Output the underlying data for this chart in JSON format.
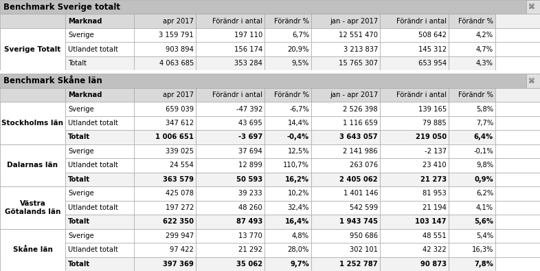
{
  "section1_title": "Benchmark Sverige totalt",
  "section2_title": "Benchmark Skåne län",
  "headers": [
    "Marknad",
    "apr 2017",
    "Förändr i antal",
    "Förändr %",
    "jan - apr 2017",
    "Förändr i antal",
    "Förändr %"
  ],
  "section1_group_label": "Sverige Totalt",
  "section1_rows": [
    {
      "sub": "Sverige",
      "bold": false,
      "vals": [
        "3 159 791",
        "197 110",
        "6,7%",
        "12 551 470",
        "508 642",
        "4,2%"
      ]
    },
    {
      "sub": "Utlandet totalt",
      "bold": false,
      "vals": [
        "903 894",
        "156 174",
        "20,9%",
        "3 213 837",
        "145 312",
        "4,7%"
      ]
    },
    {
      "sub": "Totalt",
      "bold": false,
      "vals": [
        "4 063 685",
        "353 284",
        "9,5%",
        "15 765 307",
        "653 954",
        "4,3%"
      ]
    }
  ],
  "section2_groups": [
    {
      "label": "Stockholms län",
      "rows": [
        {
          "sub": "Sverige",
          "bold": false,
          "vals": [
            "659 039",
            "-47 392",
            "-6,7%",
            "2 526 398",
            "139 165",
            "5,8%"
          ]
        },
        {
          "sub": "Utlandet totalt",
          "bold": false,
          "vals": [
            "347 612",
            "43 695",
            "14,4%",
            "1 116 659",
            "79 885",
            "7,7%"
          ]
        },
        {
          "sub": "Totalt",
          "bold": true,
          "vals": [
            "1 006 651",
            "-3 697",
            "-0,4%",
            "3 643 057",
            "219 050",
            "6,4%"
          ]
        }
      ]
    },
    {
      "label": "Dalarnas län",
      "rows": [
        {
          "sub": "Sverige",
          "bold": false,
          "vals": [
            "339 025",
            "37 694",
            "12,5%",
            "2 141 986",
            "-2 137",
            "-0,1%"
          ]
        },
        {
          "sub": "Utlandet totalt",
          "bold": false,
          "vals": [
            "24 554",
            "12 899",
            "110,7%",
            "263 076",
            "23 410",
            "9,8%"
          ]
        },
        {
          "sub": "Totalt",
          "bold": true,
          "vals": [
            "363 579",
            "50 593",
            "16,2%",
            "2 405 062",
            "21 273",
            "0,9%"
          ]
        }
      ]
    },
    {
      "label": "Västra\nGötalands län",
      "rows": [
        {
          "sub": "Sverige",
          "bold": false,
          "vals": [
            "425 078",
            "39 233",
            "10,2%",
            "1 401 146",
            "81 953",
            "6,2%"
          ]
        },
        {
          "sub": "Utlandet totalt",
          "bold": false,
          "vals": [
            "197 272",
            "48 260",
            "32,4%",
            "542 599",
            "21 194",
            "4,1%"
          ]
        },
        {
          "sub": "Totalt",
          "bold": true,
          "vals": [
            "622 350",
            "87 493",
            "16,4%",
            "1 943 745",
            "103 147",
            "5,6%"
          ]
        }
      ]
    },
    {
      "label": "Skåne län",
      "rows": [
        {
          "sub": "Sverige",
          "bold": false,
          "vals": [
            "299 947",
            "13 770",
            "4,8%",
            "950 686",
            "48 551",
            "5,4%"
          ]
        },
        {
          "sub": "Utlandet totalt",
          "bold": false,
          "vals": [
            "97 422",
            "21 292",
            "28,0%",
            "302 101",
            "42 322",
            "16,3%"
          ]
        },
        {
          "sub": "Totalt",
          "bold": true,
          "vals": [
            "397 369",
            "35 062",
            "9,7%",
            "1 252 787",
            "90 873",
            "7,8%"
          ]
        }
      ]
    }
  ],
  "header_bg": "#d9d9d9",
  "section_title_bg": "#c0c0c0",
  "totalt_bg": "#f2f2f2",
  "normal_bg": "#ffffff",
  "border_color": "#999999",
  "font_size": 7.2,
  "header_font_size": 7.2,
  "title_font_size": 8.5,
  "group_font_size": 7.5
}
